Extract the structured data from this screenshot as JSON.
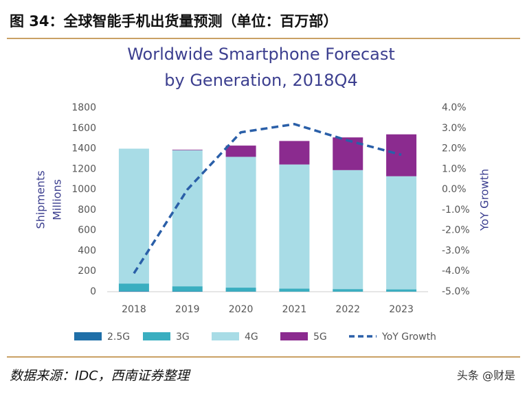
{
  "header": {
    "title": "图 34：全球智能手机出货量预测（单位：百万部）"
  },
  "chart_data": {
    "type": "bar",
    "title": [
      "Worldwide Smartphone Forecast",
      "by Generation, 2018Q4"
    ],
    "categories": [
      "2018",
      "2019",
      "2020",
      "2021",
      "2022",
      "2023"
    ],
    "series": [
      {
        "name": "2.5G",
        "color": "#1f6fa8",
        "values": [
          5,
          3,
          2,
          1,
          1,
          1
        ]
      },
      {
        "name": "3G",
        "color": "#3aaec0",
        "values": [
          75,
          50,
          38,
          30,
          25,
          22
        ]
      },
      {
        "name": "4G",
        "color": "#a8dce6",
        "values": [
          1320,
          1332,
          1280,
          1214,
          1164,
          1107
        ]
      },
      {
        "name": "5G",
        "color": "#8b2b8f",
        "values": [
          0,
          5,
          110,
          230,
          320,
          410
        ]
      },
      {
        "name": "YoY Growth",
        "type": "line",
        "axis": "y2",
        "color": "#2a5fa8",
        "values": [
          -4.1,
          0.0,
          2.8,
          3.2,
          2.4,
          1.7
        ]
      }
    ],
    "ylabel": [
      "Shipments",
      "Millions"
    ],
    "y2label": "YoY Growth",
    "ylim": [
      0,
      1800
    ],
    "yticks": [
      0,
      200,
      400,
      600,
      800,
      1000,
      1200,
      1400,
      1600,
      1800
    ],
    "y2lim": [
      -5,
      4
    ],
    "y2ticks": [
      {
        "value": -5,
        "label": "-5.0%"
      },
      {
        "value": -4,
        "label": "-4.0%"
      },
      {
        "value": -3,
        "label": "-3.0%"
      },
      {
        "value": -2,
        "label": "-2.0%"
      },
      {
        "value": -1,
        "label": "-1.0%"
      },
      {
        "value": 0,
        "label": "0.0%"
      },
      {
        "value": 1,
        "label": "1.0%"
      },
      {
        "value": 2,
        "label": "2.0%"
      },
      {
        "value": 3,
        "label": "3.0%"
      },
      {
        "value": 4,
        "label": "4.0%"
      }
    ],
    "grid": false,
    "legend": "bottom"
  },
  "footer": {
    "source": "数据来源：IDC，西南证券整理",
    "watermark": "头条 @财是"
  }
}
